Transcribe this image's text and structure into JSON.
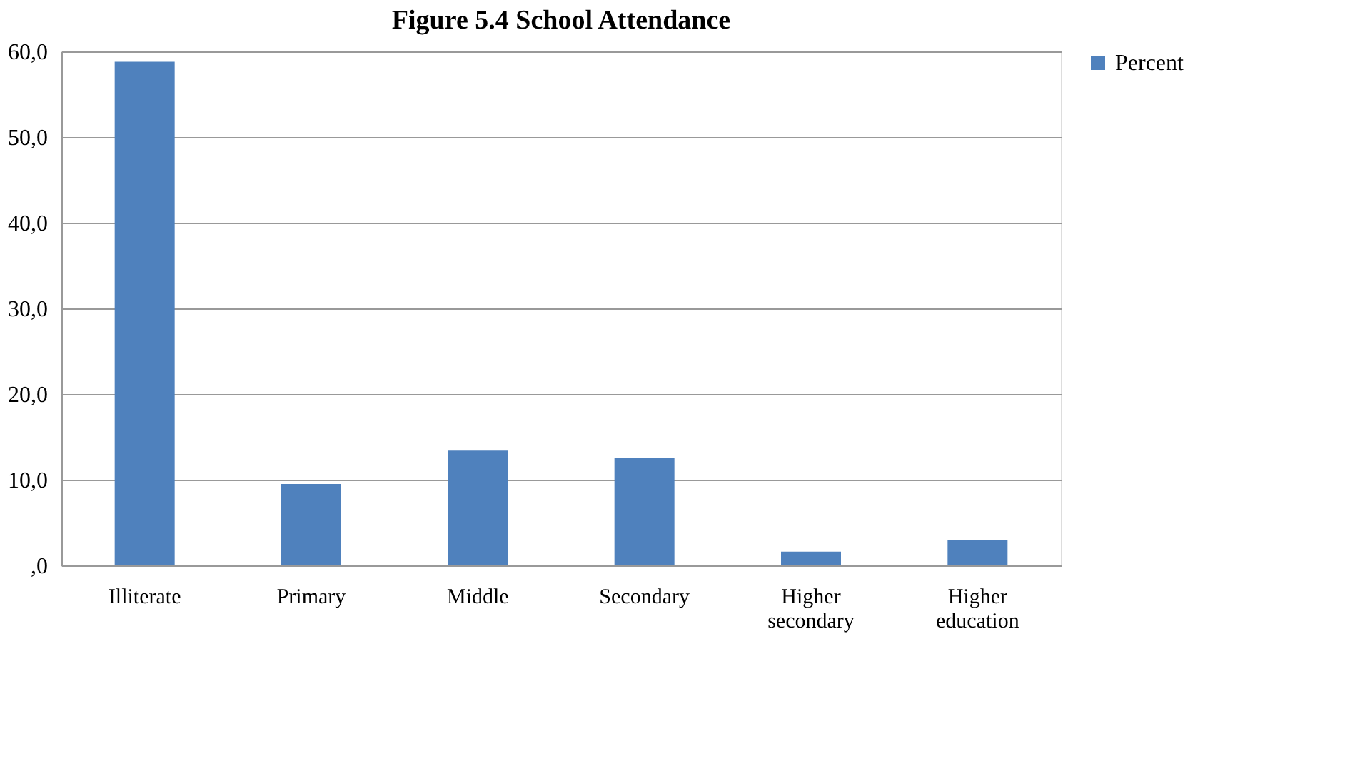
{
  "chart_data": {
    "type": "bar",
    "title": "Figure 5.4 School Attendance",
    "categories": [
      "Illiterate",
      "Primary",
      "Middle",
      "Secondary",
      "Higher secondary",
      "Higher education"
    ],
    "series": [
      {
        "name": "Percent",
        "color": "#4f81bd",
        "values": [
          58.8,
          9.5,
          13.4,
          12.5,
          1.6,
          3.0
        ]
      }
    ],
    "ylim": [
      0,
      60
    ],
    "yticks": [
      {
        "value": 0,
        "label": ",0"
      },
      {
        "value": 10,
        "label": "10,0"
      },
      {
        "value": 20,
        "label": "20,0"
      },
      {
        "value": 30,
        "label": "30,0"
      },
      {
        "value": 40,
        "label": "40,0"
      },
      {
        "value": 50,
        "label": "50,0"
      },
      {
        "value": 60,
        "label": "60,0"
      }
    ],
    "grid": "y",
    "legend": "right"
  }
}
